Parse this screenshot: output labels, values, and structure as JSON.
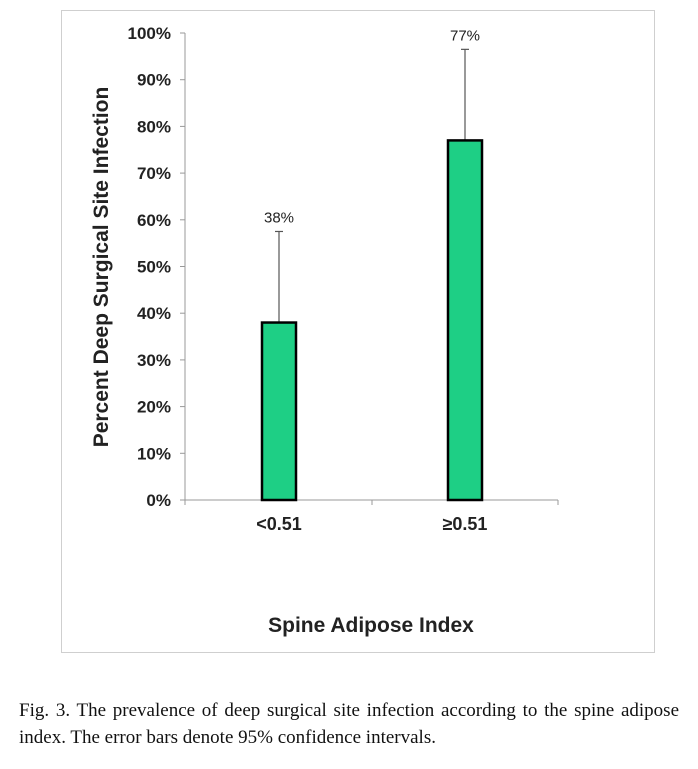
{
  "chart_data": {
    "type": "bar",
    "categories": [
      "<0.51",
      "≥0.51"
    ],
    "values": [
      38,
      77
    ],
    "error_upper": [
      57.5,
      96.5
    ],
    "data_labels": [
      "38%",
      "77%"
    ],
    "title": "",
    "xlabel": "Spine Adipose Index",
    "ylabel": "Percent Deep Surgical Site Infection",
    "ylim": [
      0,
      100
    ],
    "yticks": [
      0,
      10,
      20,
      30,
      40,
      50,
      60,
      70,
      80,
      90,
      100
    ],
    "ytick_labels": [
      "0%",
      "10%",
      "20%",
      "30%",
      "40%",
      "50%",
      "60%",
      "70%",
      "80%",
      "90%",
      "100%"
    ],
    "grid": false,
    "legend": "none",
    "colors": {
      "bar_fill": "#1ecf85",
      "bar_stroke": "#000000",
      "axis": "#999999",
      "error_bar": "#555555"
    }
  },
  "caption": "Fig. 3. The prevalence of deep surgical site infection according to the spine adipose index. The error bars denote 95% confidence intervals."
}
